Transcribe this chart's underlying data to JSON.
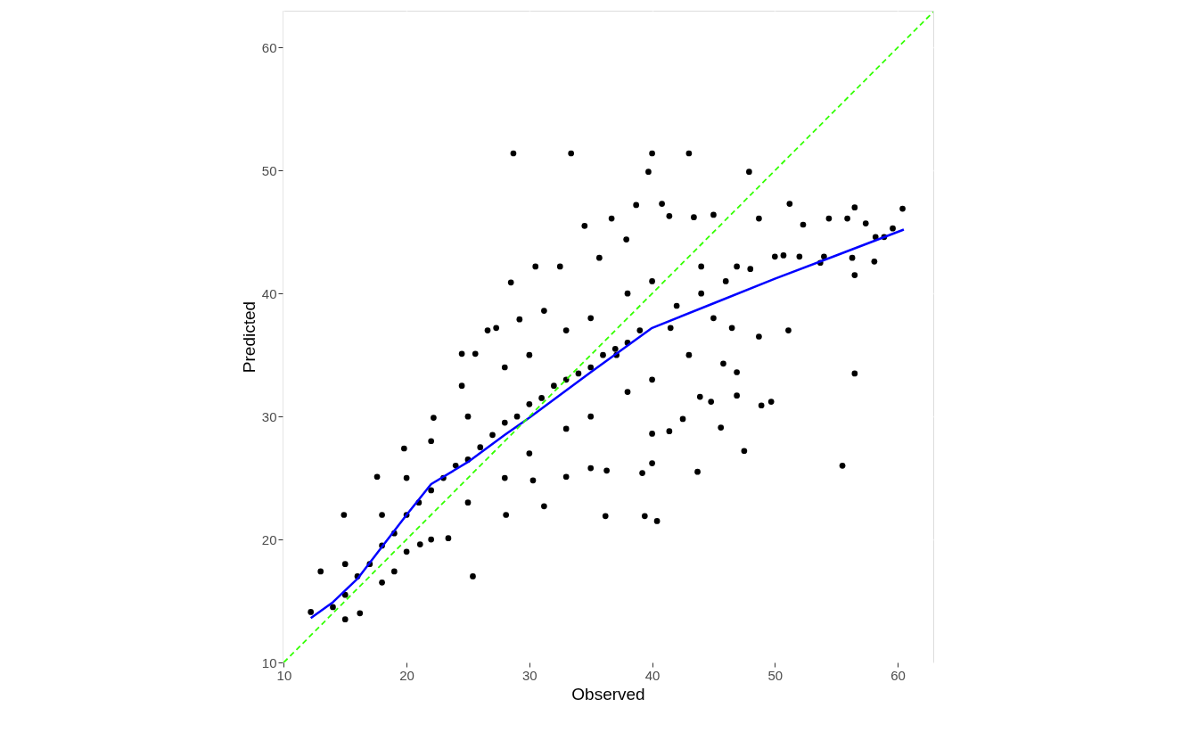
{
  "chart_data": {
    "type": "scatter",
    "xlabel": "Observed",
    "ylabel": "Predicted",
    "xlim": [
      9.9,
      62.9
    ],
    "ylim": [
      10,
      63
    ],
    "xticks": [
      10,
      20,
      30,
      40,
      50,
      60
    ],
    "yticks": [
      10,
      20,
      30,
      40,
      50,
      60
    ],
    "grid": true,
    "series": [
      {
        "type": "scatter",
        "color": "#000000",
        "marker": "circle",
        "x": [
          28.7,
          33.4,
          40.0,
          43.0,
          39.7,
          47.9,
          60.4,
          56.5,
          54.4,
          55.9,
          57.4,
          59.6,
          58.2,
          58.9,
          55.5,
          56.5,
          51.1,
          48.9,
          49.7,
          47.5,
          45.6,
          46.9,
          46.9,
          45.8,
          44.8,
          43.9,
          40.4,
          39.4,
          36.2,
          43.7,
          39.2,
          40.0,
          40.0,
          41.4,
          42.5,
          34.5,
          36.7,
          38.7,
          40.8,
          41.4,
          43.4,
          45.0,
          48.7,
          51.2,
          52.3,
          50.7,
          53.7,
          56.3,
          56.5,
          58.1,
          30.5,
          28.5,
          26.6,
          24.5,
          22.2,
          19.8,
          17.6,
          14.9,
          13.0,
          12.2,
          25.4,
          23.4,
          21.1,
          19.0,
          16.2,
          28.1,
          31.2,
          30.3,
          33.0,
          35.0,
          36.3,
          24.5,
          25.6,
          27.3,
          29.2,
          31.2,
          32.5,
          35.7,
          37.9,
          44.0,
          46.9,
          46.5,
          48.7,
          41.5,
          37.1,
          14,
          15,
          16,
          17,
          18,
          19,
          20,
          21,
          22,
          23,
          24,
          25,
          26,
          27,
          28,
          29,
          30,
          31,
          32,
          33,
          34,
          35,
          36,
          37,
          38,
          39,
          20,
          20,
          25,
          25,
          30,
          30,
          35,
          35,
          15,
          15,
          18,
          18,
          22,
          22,
          28,
          28,
          33,
          33,
          38,
          38,
          40,
          40,
          42,
          44,
          45,
          43,
          46,
          48,
          50,
          52,
          54
        ],
        "values": [
          51.4,
          51.4,
          51.4,
          51.4,
          49.9,
          49.9,
          46.9,
          47.0,
          46.1,
          46.1,
          45.7,
          45.3,
          44.6,
          44.6,
          26.0,
          33.5,
          37.0,
          30.9,
          31.2,
          27.2,
          29.1,
          33.6,
          31.7,
          34.3,
          31.2,
          31.6,
          21.5,
          21.9,
          21.9,
          25.5,
          25.4,
          26.2,
          28.6,
          28.8,
          29.8,
          45.5,
          46.1,
          47.2,
          47.3,
          46.3,
          46.2,
          46.4,
          46.1,
          47.3,
          45.6,
          43.1,
          42.5,
          42.9,
          41.5,
          42.6,
          42.2,
          40.9,
          37.0,
          32.5,
          29.9,
          27.4,
          25.1,
          22.0,
          17.4,
          14.1,
          17.0,
          20.1,
          19.6,
          17.4,
          14.0,
          22.0,
          22.7,
          24.8,
          25.1,
          25.8,
          25.6,
          35.1,
          35.1,
          37.2,
          37.9,
          38.6,
          42.2,
          42.9,
          44.4,
          42.2,
          42.2,
          37.2,
          36.5,
          37.2,
          35.0,
          14.5,
          15.5,
          17,
          18,
          19.5,
          20.5,
          22,
          23,
          24,
          25,
          26,
          26.5,
          27.5,
          28.5,
          29.5,
          30,
          31,
          31.5,
          32.5,
          33,
          33.5,
          34,
          35,
          35.5,
          36,
          37,
          25,
          19,
          30,
          23,
          35,
          27,
          38,
          30,
          18,
          13.5,
          22,
          16.5,
          28,
          20,
          34,
          25,
          37,
          29,
          40,
          32,
          41,
          33,
          39,
          40,
          38,
          35,
          41,
          42,
          43,
          43,
          43
        ]
      },
      {
        "type": "line",
        "color": "#0000ff",
        "line_style": "solid",
        "x": [
          12.2,
          14,
          16,
          18,
          20,
          22,
          25,
          28,
          30,
          35,
          40,
          45,
          50,
          55,
          60.5
        ],
        "values": [
          13.6,
          14.9,
          16.8,
          19.4,
          22,
          24.5,
          26.3,
          28.5,
          29.9,
          33.6,
          37.2,
          39.2,
          41.2,
          43.1,
          45.2
        ]
      },
      {
        "type": "line",
        "color": "#33ff00",
        "line_style": "dashed",
        "x": [
          10,
          62.9
        ],
        "values": [
          10,
          62.9
        ]
      }
    ]
  }
}
